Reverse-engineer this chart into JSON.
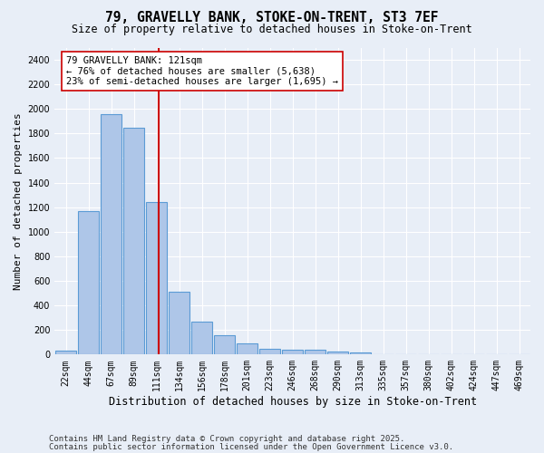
{
  "title_line1": "79, GRAVELLY BANK, STOKE-ON-TRENT, ST3 7EF",
  "title_line2": "Size of property relative to detached houses in Stoke-on-Trent",
  "xlabel": "Distribution of detached houses by size in Stoke-on-Trent",
  "ylabel": "Number of detached properties",
  "categories": [
    "22sqm",
    "44sqm",
    "67sqm",
    "89sqm",
    "111sqm",
    "134sqm",
    "156sqm",
    "178sqm",
    "201sqm",
    "223sqm",
    "246sqm",
    "268sqm",
    "290sqm",
    "313sqm",
    "335sqm",
    "357sqm",
    "380sqm",
    "402sqm",
    "424sqm",
    "447sqm",
    "469sqm"
  ],
  "values": [
    30,
    1170,
    1960,
    1850,
    1240,
    510,
    270,
    155,
    90,
    50,
    40,
    40,
    25,
    20,
    5,
    5,
    5,
    5,
    5,
    5,
    5
  ],
  "bar_color": "#aec6e8",
  "bar_edge_color": "#5b9bd5",
  "vline_x": 4.1,
  "vline_color": "#cc0000",
  "annotation_text": "79 GRAVELLY BANK: 121sqm\n← 76% of detached houses are smaller (5,638)\n23% of semi-detached houses are larger (1,695) →",
  "annotation_box_color": "#ffffff",
  "annotation_box_edge": "#cc0000",
  "ylim": [
    0,
    2500
  ],
  "yticks": [
    0,
    200,
    400,
    600,
    800,
    1000,
    1200,
    1400,
    1600,
    1800,
    2000,
    2200,
    2400
  ],
  "bg_color": "#e8eef7",
  "footer_line1": "Contains HM Land Registry data © Crown copyright and database right 2025.",
  "footer_line2": "Contains public sector information licensed under the Open Government Licence v3.0.",
  "title_fontsize": 10.5,
  "subtitle_fontsize": 8.5,
  "axis_label_fontsize": 8,
  "tick_fontsize": 7,
  "annotation_fontsize": 7.5,
  "footer_fontsize": 6.5
}
